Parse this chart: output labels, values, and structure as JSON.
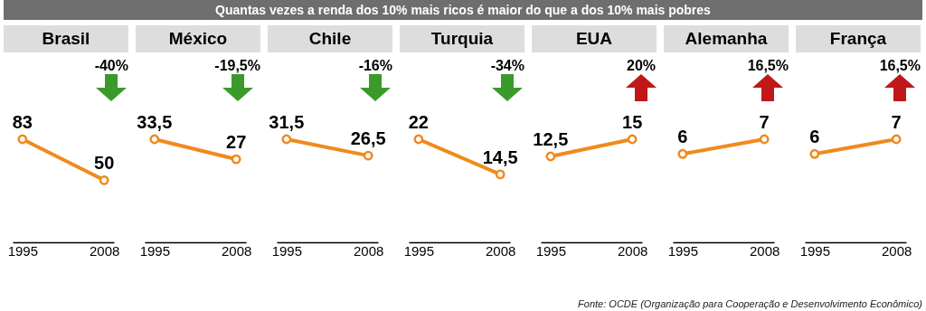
{
  "chart_data": [
    {
      "type": "line",
      "title": "Brasil",
      "categories": [
        "1995",
        "2008"
      ],
      "series": [
        {
          "color": "#f08a1c",
          "values": [
            83,
            50
          ],
          "value_labels": [
            "83",
            "50"
          ]
        }
      ],
      "data_labels": true,
      "marker": "circle",
      "tick_labels": "x",
      "annotations": [
        "-40%",
        "Quantas vezes a renda dos 10% mais ricos é maior do que a dos 10% mais pobres"
      ]
    },
    {
      "type": "line",
      "title": "México",
      "categories": [
        "1995",
        "2008"
      ],
      "series": [
        {
          "color": "#f08a1c",
          "values": [
            33.5,
            27
          ],
          "value_labels": [
            "33,5",
            "27"
          ]
        }
      ],
      "data_labels": true,
      "marker": "circle",
      "tick_labels": "x",
      "annotations": [
        "-19,5%"
      ]
    },
    {
      "type": "line",
      "title": "Chile",
      "categories": [
        "1995",
        "2008"
      ],
      "series": [
        {
          "color": "#f08a1c",
          "values": [
            31.5,
            26.5
          ],
          "value_labels": [
            "31,5",
            "26,5"
          ]
        }
      ],
      "data_labels": true,
      "marker": "circle",
      "tick_labels": "x",
      "annotations": [
        "-16%"
      ]
    },
    {
      "type": "line",
      "title": "Turquia",
      "categories": [
        "1995",
        "2008"
      ],
      "series": [
        {
          "color": "#f08a1c",
          "values": [
            22,
            14.5
          ],
          "value_labels": [
            "22",
            "14,5"
          ]
        }
      ],
      "data_labels": true,
      "marker": "circle",
      "tick_labels": "x",
      "annotations": [
        "-34%"
      ]
    },
    {
      "type": "line",
      "title": "EUA",
      "categories": [
        "1995",
        "2008"
      ],
      "series": [
        {
          "color": "#f08a1c",
          "values": [
            12.5,
            15
          ],
          "value_labels": [
            "12,5",
            "15"
          ]
        }
      ],
      "data_labels": true,
      "marker": "circle",
      "tick_labels": "x",
      "annotations": [
        "20%"
      ]
    },
    {
      "type": "line",
      "title": "Alemanha",
      "categories": [
        "1995",
        "2008"
      ],
      "series": [
        {
          "color": "#f08a1c",
          "values": [
            6,
            7
          ],
          "value_labels": [
            "6",
            "7"
          ]
        }
      ],
      "data_labels": true,
      "marker": "circle",
      "tick_labels": "x",
      "annotations": [
        "16,5%"
      ]
    },
    {
      "type": "line",
      "title": "França",
      "categories": [
        "1995",
        "2008"
      ],
      "series": [
        {
          "color": "#f08a1c",
          "values": [
            6,
            7
          ],
          "value_labels": [
            "6",
            "7"
          ]
        }
      ],
      "data_labels": true,
      "marker": "circle",
      "tick_labels": "x",
      "annotations": [
        "16,5%",
        "Fonte: OCDE (Organização para Cooperação e Desenvolvimento Econômico)"
      ]
    }
  ]
}
